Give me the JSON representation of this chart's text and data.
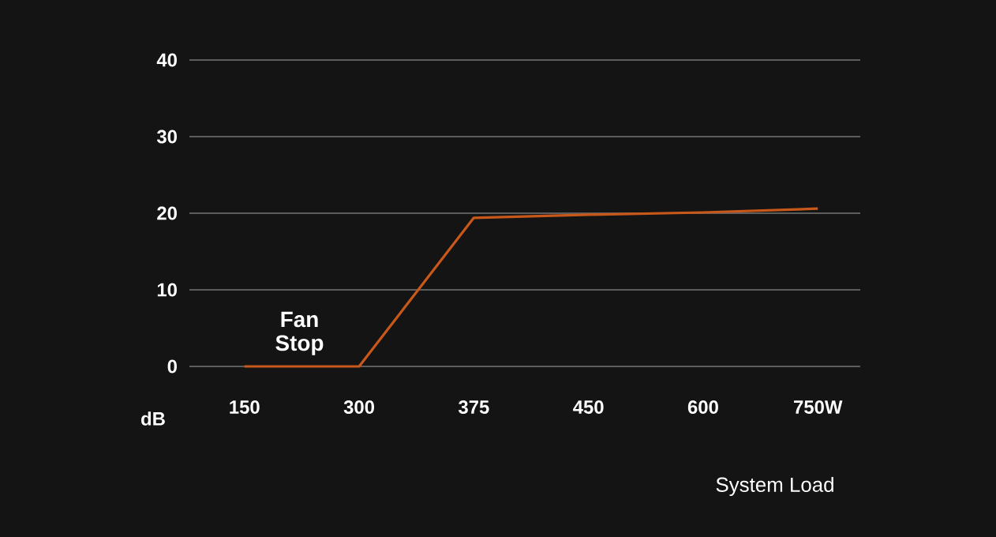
{
  "chart_data": {
    "type": "line",
    "categories": [
      "150",
      "300",
      "375",
      "450",
      "600",
      "750W"
    ],
    "values": [
      0,
      0,
      19.4,
      19.8,
      20.1,
      20.6
    ],
    "color": "#c8581a",
    "ylim": [
      0,
      40
    ],
    "yticks": [
      0,
      10,
      20,
      30,
      40
    ],
    "grid": "y",
    "marker": "none",
    "line_style": "solid",
    "ylabel": "dB",
    "xlabel": "System Load",
    "annotations": [
      "Fan Stop"
    ]
  }
}
